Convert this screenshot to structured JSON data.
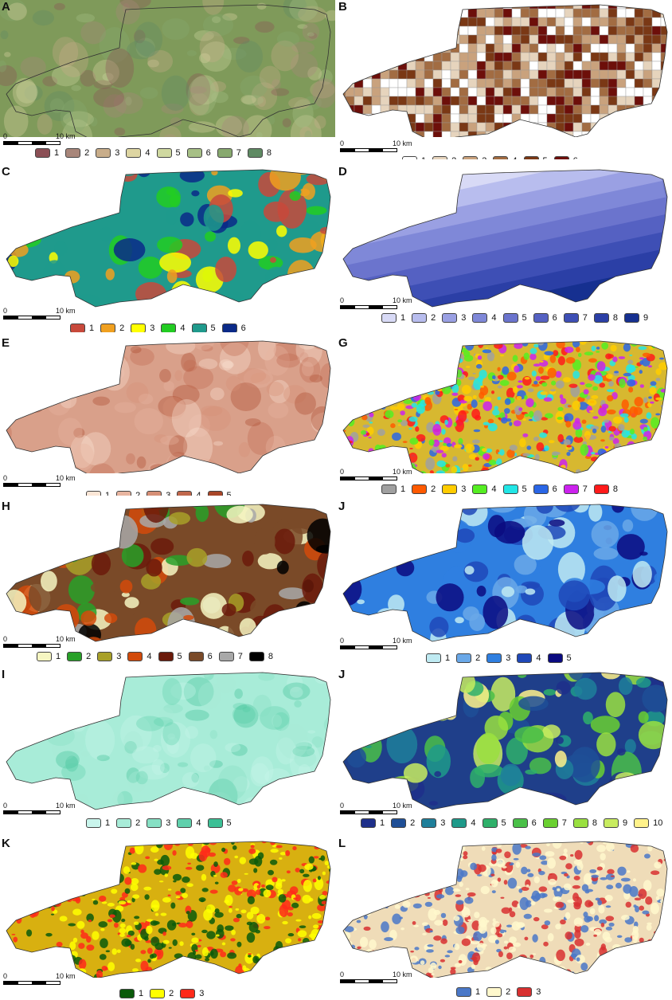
{
  "scale": {
    "zero": "0",
    "distance": "10 km"
  },
  "panels": [
    {
      "id": "A",
      "label": "A",
      "kind": "relief",
      "fill": "#7f9a5a",
      "legend": [
        {
          "t": "1",
          "c": "#8b4f55"
        },
        {
          "t": "2",
          "c": "#a8867a"
        },
        {
          "t": "3",
          "c": "#c8ad8a"
        },
        {
          "t": "4",
          "c": "#ddd5a2"
        },
        {
          "t": "5",
          "c": "#cfd8a0"
        },
        {
          "t": "6",
          "c": "#a7c086"
        },
        {
          "t": "7",
          "c": "#88a96f"
        },
        {
          "t": "8",
          "c": "#5f8a63"
        }
      ]
    },
    {
      "id": "B",
      "label": "B",
      "kind": "grid",
      "fill": "#c8a07a",
      "legend": [
        {
          "t": "1",
          "c": "#ffffff"
        },
        {
          "t": "2",
          "c": "#e6d4bd"
        },
        {
          "t": "3",
          "c": "#c9a27d"
        },
        {
          "t": "4",
          "c": "#a26c42"
        },
        {
          "t": "5",
          "c": "#7a3815"
        },
        {
          "t": "6",
          "c": "#6d0f0a"
        }
      ]
    },
    {
      "id": "C",
      "label": "C",
      "kind": "geology",
      "fill": "#1f9a8c",
      "legend": [
        {
          "t": "1",
          "c": "#c8493b"
        },
        {
          "t": "2",
          "c": "#f0a020"
        },
        {
          "t": "3",
          "c": "#ffff00"
        },
        {
          "t": "4",
          "c": "#22cc22"
        },
        {
          "t": "5",
          "c": "#1f9a8c"
        },
        {
          "t": "6",
          "c": "#0a2a88"
        }
      ]
    },
    {
      "id": "D",
      "label": "D",
      "kind": "gradient",
      "fill": "#6f78c9",
      "legend": [
        {
          "t": "1",
          "c": "#d8daf6"
        },
        {
          "t": "2",
          "c": "#b8bdee"
        },
        {
          "t": "3",
          "c": "#9aa0e3"
        },
        {
          "t": "4",
          "c": "#7f88d8"
        },
        {
          "t": "5",
          "c": "#6b74cd"
        },
        {
          "t": "6",
          "c": "#5561c2"
        },
        {
          "t": "7",
          "c": "#3e4fb5"
        },
        {
          "t": "8",
          "c": "#2b3fa6"
        },
        {
          "t": "9",
          "c": "#163090"
        }
      ]
    },
    {
      "id": "E",
      "label": "E",
      "kind": "relief",
      "fill": "#d9a08a",
      "legend": [
        {
          "t": "1",
          "c": "#fbe6d6"
        },
        {
          "t": "2",
          "c": "#e8b5a0"
        },
        {
          "t": "3",
          "c": "#d68f76"
        },
        {
          "t": "4",
          "c": "#c0674c"
        },
        {
          "t": "5",
          "c": "#a84628"
        }
      ]
    },
    {
      "id": "G",
      "label": "G",
      "kind": "aspect",
      "fill": "#d7b830",
      "legend": [
        {
          "t": "1",
          "c": "#a0a0a0"
        },
        {
          "t": "2",
          "c": "#ff5a00"
        },
        {
          "t": "3",
          "c": "#ffcc00"
        },
        {
          "t": "4",
          "c": "#55ee22"
        },
        {
          "t": "5",
          "c": "#22e6e6"
        },
        {
          "t": "6",
          "c": "#2a66e6"
        },
        {
          "t": "7",
          "c": "#cc22ee"
        },
        {
          "t": "8",
          "c": "#ff1a1a"
        }
      ]
    },
    {
      "id": "H",
      "label": "H",
      "kind": "landuse",
      "fill": "#7a4a28",
      "legend": [
        {
          "t": "1",
          "c": "#f6f6c2"
        },
        {
          "t": "2",
          "c": "#28a028"
        },
        {
          "t": "3",
          "c": "#a8a028"
        },
        {
          "t": "4",
          "c": "#d24a0a"
        },
        {
          "t": "5",
          "c": "#6b1a0a"
        },
        {
          "t": "6",
          "c": "#7a4a28"
        },
        {
          "t": "7",
          "c": "#a8a8a8"
        },
        {
          "t": "8",
          "c": "#000000"
        }
      ]
    },
    {
      "id": "J",
      "label": "J",
      "kind": "soil",
      "fill": "#2f7fe0",
      "legend": [
        {
          "t": "1",
          "c": "#bfeaf2"
        },
        {
          "t": "2",
          "c": "#6aa8e8"
        },
        {
          "t": "3",
          "c": "#2f7fe0"
        },
        {
          "t": "4",
          "c": "#1f48b8"
        },
        {
          "t": "5",
          "c": "#0a0a80"
        }
      ]
    },
    {
      "id": "I",
      "label": "I",
      "kind": "relief",
      "fill": "#a8ecd8",
      "legend": [
        {
          "t": "1",
          "c": "#c9f5ec"
        },
        {
          "t": "2",
          "c": "#a8ecd8"
        },
        {
          "t": "3",
          "c": "#86e0c4"
        },
        {
          "t": "4",
          "c": "#5fd0ac"
        },
        {
          "t": "5",
          "c": "#3cc096"
        }
      ]
    },
    {
      "id": "J2",
      "label": "J",
      "kind": "twi",
      "fill": "#1f3f8a",
      "legend": [
        {
          "t": "1",
          "c": "#1e2f8a"
        },
        {
          "t": "2",
          "c": "#1f4f96"
        },
        {
          "t": "3",
          "c": "#1f7f9a"
        },
        {
          "t": "4",
          "c": "#1f9a8a"
        },
        {
          "t": "5",
          "c": "#2fb06a"
        },
        {
          "t": "6",
          "c": "#4ac048"
        },
        {
          "t": "7",
          "c": "#6ad030"
        },
        {
          "t": "8",
          "c": "#9ae040"
        },
        {
          "t": "9",
          "c": "#c8ec60"
        },
        {
          "t": "10",
          "c": "#fff28a"
        }
      ]
    },
    {
      "id": "K",
      "label": "K",
      "kind": "texture",
      "fill": "#d8b010",
      "legend": [
        {
          "t": "1",
          "c": "#0a5a0a"
        },
        {
          "t": "2",
          "c": "#ffff00"
        },
        {
          "t": "3",
          "c": "#ff2a1a"
        }
      ]
    },
    {
      "id": "L",
      "label": "L",
      "kind": "texture",
      "fill": "#efdcb8",
      "legend": [
        {
          "t": "1",
          "c": "#4a78c8"
        },
        {
          "t": "2",
          "c": "#fff8cc"
        },
        {
          "t": "3",
          "c": "#d83030"
        }
      ]
    }
  ]
}
